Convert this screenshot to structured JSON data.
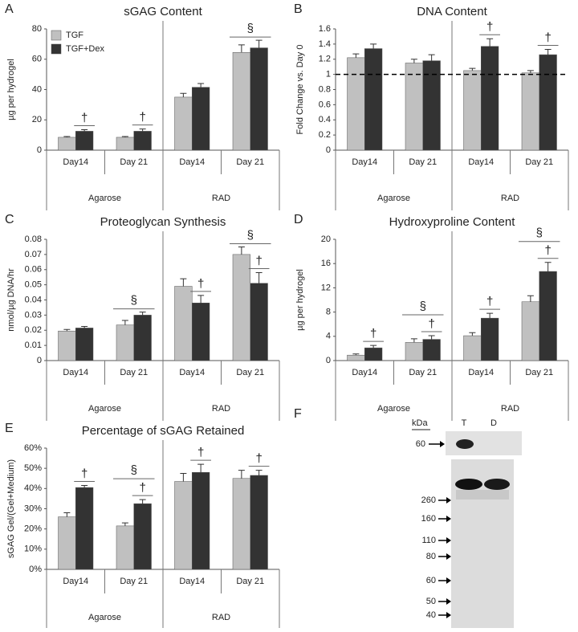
{
  "chart_data": [
    {
      "type": "bar",
      "panel": "A",
      "title": "sGAG Content",
      "y_label": "µg per hydrogel",
      "categories": [
        "Day14",
        "Day 21",
        "Day14",
        "Day 21"
      ],
      "groups": [
        "Agarose",
        "RAD"
      ],
      "ylim": [
        0,
        80
      ],
      "yticks": [
        0,
        20,
        40,
        60,
        80
      ],
      "legend": "upper left",
      "series": [
        {
          "name": "TGF",
          "color": "#c0c0c0",
          "values": [
            8.5,
            8.5,
            35,
            64.5
          ],
          "errors": [
            0.5,
            0.5,
            2.5,
            5
          ]
        },
        {
          "name": "TGF+Dex",
          "color": "#333333",
          "values": [
            12.5,
            12.5,
            41.5,
            67.5
          ],
          "errors": [
            1,
            1.5,
            2.5,
            5
          ],
          "markers": [
            "†",
            "†",
            null,
            null
          ]
        }
      ],
      "category_markers": [
        null,
        null,
        null,
        "§"
      ]
    },
    {
      "type": "bar",
      "panel": "B",
      "title": "DNA Content",
      "y_label": "Fold Change vs. Day 0",
      "categories": [
        "Day14",
        "Day 21",
        "Day14",
        "Day 21"
      ],
      "groups": [
        "Agarose",
        "RAD"
      ],
      "ylim": [
        0,
        1.6
      ],
      "yticks": [
        0,
        0.2,
        0.4,
        0.6,
        0.8,
        1,
        1.2,
        1.4,
        1.6
      ],
      "reference_line": 1,
      "series": [
        {
          "name": "TGF",
          "color": "#c0c0c0",
          "values": [
            1.22,
            1.15,
            1.05,
            1.02
          ],
          "errors": [
            0.05,
            0.05,
            0.03,
            0.03
          ]
        },
        {
          "name": "TGF+Dex",
          "color": "#333333",
          "values": [
            1.34,
            1.18,
            1.37,
            1.26
          ],
          "errors": [
            0.06,
            0.08,
            0.1,
            0.07
          ],
          "markers": [
            null,
            null,
            "†",
            "†"
          ]
        }
      ]
    },
    {
      "type": "bar",
      "panel": "C",
      "title": "Proteoglycan Synthesis",
      "y_label": "nmol/µg DNA/hr",
      "categories": [
        "Day14",
        "Day 21",
        "Day14",
        "Day 21"
      ],
      "groups": [
        "Agarose",
        "RAD"
      ],
      "ylim": [
        0,
        0.08
      ],
      "yticks": [
        0,
        0.01,
        0.02,
        0.03,
        0.04,
        0.05,
        0.06,
        0.07,
        0.08
      ],
      "series": [
        {
          "name": "TGF",
          "color": "#c0c0c0",
          "values": [
            0.0195,
            0.0235,
            0.049,
            0.07
          ],
          "errors": [
            0.001,
            0.003,
            0.005,
            0.005
          ]
        },
        {
          "name": "TGF+Dex",
          "color": "#333333",
          "values": [
            0.0215,
            0.03,
            0.038,
            0.051
          ],
          "errors": [
            0.001,
            0.002,
            0.005,
            0.007
          ],
          "markers": [
            null,
            null,
            "†",
            "†"
          ]
        }
      ],
      "category_markers": [
        null,
        "§",
        null,
        "§"
      ]
    },
    {
      "type": "bar",
      "panel": "D",
      "title": "Hydroxyproline Content",
      "y_label": "µg per hydrogel",
      "categories": [
        "Day14",
        "Day 21",
        "Day14",
        "Day 21"
      ],
      "groups": [
        "Agarose",
        "RAD"
      ],
      "ylim": [
        0,
        20
      ],
      "yticks": [
        0,
        4,
        8,
        12,
        16,
        20
      ],
      "series": [
        {
          "name": "TGF",
          "color": "#c0c0c0",
          "values": [
            0.9,
            3.0,
            4.1,
            9.7
          ],
          "errors": [
            0.2,
            0.6,
            0.5,
            1
          ]
        },
        {
          "name": "TGF+Dex",
          "color": "#333333",
          "values": [
            2.1,
            3.5,
            7.0,
            14.7
          ],
          "errors": [
            0.4,
            0.6,
            0.8,
            1.5
          ],
          "markers": [
            "†",
            "†",
            "†",
            "†"
          ]
        }
      ],
      "category_markers": [
        null,
        "§",
        null,
        "§"
      ]
    },
    {
      "type": "bar",
      "panel": "E",
      "title": "Percentage of sGAG Retained",
      "y_label": "sGAG Gel/(Gel+Medium)",
      "categories": [
        "Day14",
        "Day 21",
        "Day14",
        "Day 21"
      ],
      "groups": [
        "Agarose",
        "RAD"
      ],
      "ylim": [
        0,
        60
      ],
      "yticks": [
        {
          "value": 0,
          "label": "0%"
        },
        {
          "value": 10,
          "label": "10%"
        },
        {
          "value": 20,
          "label": "20%"
        },
        {
          "value": 30,
          "label": "30%"
        },
        {
          "value": 40,
          "label": "40%"
        },
        {
          "value": 50,
          "label": "50%"
        },
        {
          "value": 60,
          "label": "60%"
        }
      ],
      "series": [
        {
          "name": "TGF",
          "color": "#c0c0c0",
          "values": [
            26,
            21.5,
            43.5,
            45
          ],
          "errors": [
            2,
            1.5,
            4,
            4
          ]
        },
        {
          "name": "TGF+Dex",
          "color": "#333333",
          "values": [
            40.5,
            32.5,
            48,
            46.5
          ],
          "errors": [
            1,
            2,
            4,
            2.5
          ],
          "markers": [
            "†",
            "†",
            "†",
            "†"
          ]
        }
      ],
      "category_markers": [
        null,
        "§",
        null,
        null
      ]
    }
  ],
  "blot": {
    "panel": "F",
    "unit_label": "kDa",
    "lanes": [
      "T",
      "D"
    ],
    "top_marker": 60,
    "markers": [
      260,
      160,
      110,
      80,
      60,
      50,
      40
    ]
  }
}
